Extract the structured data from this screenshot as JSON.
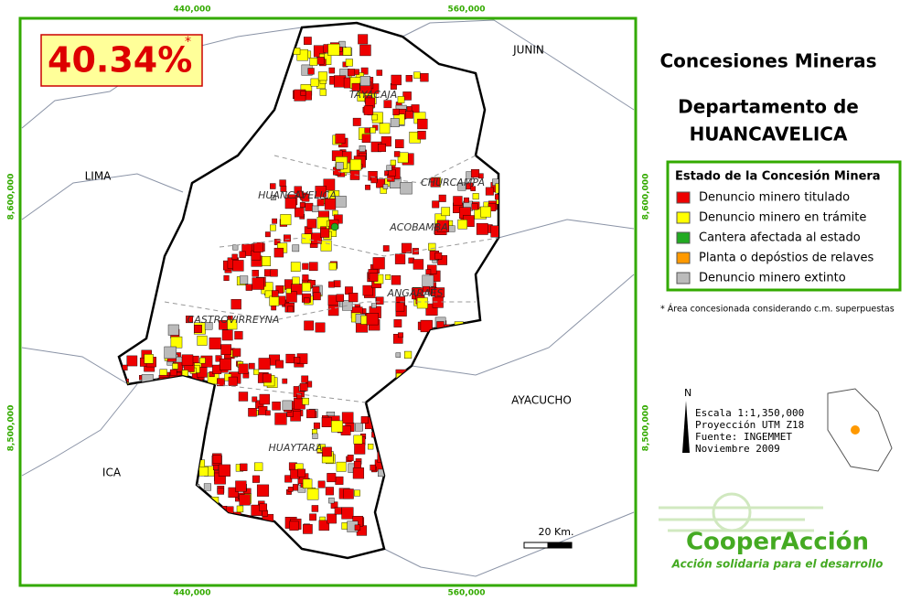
{
  "map": {
    "percent": "40.34%",
    "percent_note": "*",
    "coords": {
      "top": [
        "440,000",
        "560,000"
      ],
      "bottom": [
        "440,000",
        "560,000"
      ],
      "left": [
        "8,600,000",
        "8,500,000"
      ],
      "right": [
        "8,600,000",
        "8,500,000"
      ]
    },
    "regions": [
      "JUNIN",
      "LIMA",
      "ICA",
      "AYACUCHO"
    ],
    "provinces": [
      "TAYACAJA",
      "CHURCAMPA",
      "HUANCAVELICA",
      "ACOBAMBA",
      "ANGARAES",
      "CASTROVIRREYNA",
      "HUAYTARA"
    ],
    "scale": "20 Km.",
    "north": "N"
  },
  "header": {
    "title": "Concesiones Mineras",
    "subtitle_line1": "Departamento de",
    "subtitle_line2": "HUANCAVELICA"
  },
  "legend": {
    "title": "Estado de la Concesión Minera",
    "items": [
      {
        "label": "Denuncio minero titulado",
        "color": "#ee0000"
      },
      {
        "label": "Denuncio minero en trámite",
        "color": "#ffff00"
      },
      {
        "label": "Cantera afectada al estado",
        "color": "#22aa22"
      },
      {
        "label": "Planta o depóstios de relaves",
        "color": "#ff9900"
      },
      {
        "label": "Denuncio minero extinto",
        "color": "#bbbbbb"
      }
    ]
  },
  "note": "* Área concesionada considerando c.m. superpuestas",
  "info": {
    "lines": [
      "Escala 1:1,350,000",
      "Proyección UTM Z18",
      "Fuente: INGEMMET",
      "Noviembre 2009"
    ]
  },
  "logo": {
    "name": "CooperAcción",
    "tagline": "Acción solidaria para el desarrollo"
  }
}
